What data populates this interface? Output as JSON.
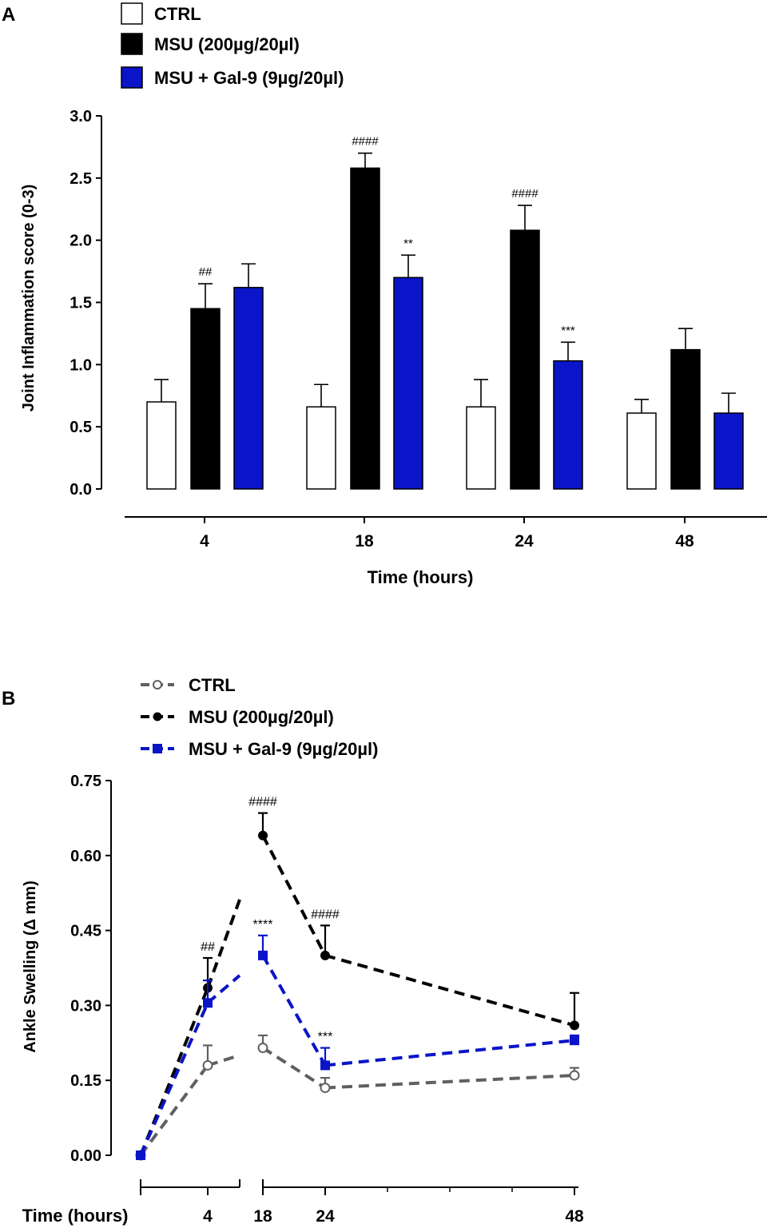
{
  "colors": {
    "ctrl_bar": "#ffffff",
    "msu": "#000000",
    "gal9": "#0a14c8",
    "ctrl_line": "#606060"
  },
  "chart_data": [
    {
      "panel": "A",
      "type": "bar",
      "xlabel": "Time (hours)",
      "ylabel": "Joint Inflammation score (0-3)",
      "ylim": [
        0,
        3.0
      ],
      "yticks": [
        "0.0",
        "0.5",
        "1.0",
        "1.5",
        "2.0",
        "2.5",
        "3.0"
      ],
      "categories": [
        "4",
        "18",
        "24",
        "48"
      ],
      "legend": [
        "CTRL",
        "MSU (200µg/20µl)",
        "MSU + Gal-9 (9µg/20µl)"
      ],
      "series": [
        {
          "name": "CTRL",
          "values": [
            0.7,
            0.66,
            0.66,
            0.61
          ],
          "errors": [
            0.18,
            0.18,
            0.22,
            0.11
          ],
          "annotations": [
            "",
            "",
            "",
            ""
          ]
        },
        {
          "name": "MSU (200µg/20µl)",
          "values": [
            1.45,
            2.58,
            2.08,
            1.12
          ],
          "errors": [
            0.2,
            0.12,
            0.2,
            0.17
          ],
          "annotations": [
            "##",
            "####",
            "####",
            ""
          ]
        },
        {
          "name": "MSU + Gal-9 (9µg/20µl)",
          "values": [
            1.62,
            1.7,
            1.03,
            0.61
          ],
          "errors": [
            0.19,
            0.18,
            0.15,
            0.16
          ],
          "annotations": [
            "",
            "**",
            "***",
            ""
          ]
        }
      ]
    },
    {
      "panel": "B",
      "type": "line",
      "xlabel": "Time (hours)",
      "ylabel": "Ankle Swelling (Δ mm)",
      "ylim": [
        0,
        0.75
      ],
      "yticks": [
        "0.00",
        "0.15",
        "0.30",
        "0.45",
        "0.60",
        "0.75"
      ],
      "xticks": [
        "4",
        "18",
        "24",
        "48"
      ],
      "legend": [
        "CTRL",
        "MSU (200µg/20µl)",
        "MSU + Gal-9 (9µg/20µl)"
      ],
      "series": [
        {
          "name": "CTRL",
          "x": [
            0,
            4,
            18,
            24,
            48
          ],
          "values": [
            0.0,
            0.18,
            0.215,
            0.135,
            0.16
          ],
          "errors": [
            0,
            0.04,
            0.025,
            0.02,
            0.015
          ],
          "annotations": [
            "",
            "",
            "",
            "",
            ""
          ]
        },
        {
          "name": "MSU (200µg/20µl)",
          "x": [
            0,
            4,
            18,
            24,
            48
          ],
          "values": [
            0.0,
            0.335,
            0.64,
            0.4,
            0.26
          ],
          "errors": [
            0,
            0.06,
            0.045,
            0.06,
            0.065
          ],
          "annotations": [
            "",
            "##",
            "####",
            "####",
            ""
          ]
        },
        {
          "name": "MSU + Gal-9 (9µg/20µl)",
          "x": [
            0,
            4,
            18,
            24,
            48
          ],
          "values": [
            0.0,
            0.305,
            0.4,
            0.18,
            0.23
          ],
          "errors": [
            0,
            0.045,
            0.04,
            0.035,
            0.01
          ],
          "annotations": [
            "",
            "",
            "****",
            "***",
            ""
          ]
        }
      ]
    }
  ]
}
